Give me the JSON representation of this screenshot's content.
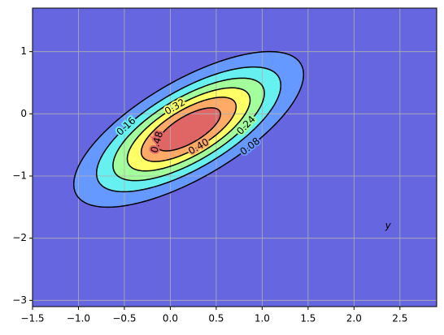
{
  "chart_data": {
    "type": "contour",
    "levels": [
      0.08,
      0.16,
      0.24,
      0.32,
      0.4,
      0.48
    ],
    "level_labels": [
      "0.08",
      "0.16",
      "0.24",
      "0.32",
      "0.40",
      "0.48"
    ],
    "colors": [
      "#6666e0",
      "#6699ff",
      "#66f0f0",
      "#a3ff9c",
      "#ffff66",
      "#ffaa66",
      "#e06666"
    ],
    "line_color": "#000000",
    "xlim": [
      -1.5,
      2.9
    ],
    "ylim": [
      -3.1,
      1.7
    ],
    "xticks": [
      {
        "value": -1.5,
        "label": "−1.5"
      },
      {
        "value": -1.0,
        "label": "−1.0"
      },
      {
        "value": -0.5,
        "label": "−0.5"
      },
      {
        "value": 0.0,
        "label": "0.0"
      },
      {
        "value": 0.5,
        "label": "0.5"
      },
      {
        "value": 1.0,
        "label": "1.0"
      },
      {
        "value": 1.5,
        "label": "1.5"
      },
      {
        "value": 2.0,
        "label": "2.0"
      },
      {
        "value": 2.5,
        "label": "2.5"
      }
    ],
    "yticks": [
      {
        "value": -3,
        "label": "−3"
      },
      {
        "value": -2,
        "label": "−2"
      },
      {
        "value": -1,
        "label": "−1"
      },
      0,
      1
    ],
    "grid": true,
    "annotation": "y"
  }
}
